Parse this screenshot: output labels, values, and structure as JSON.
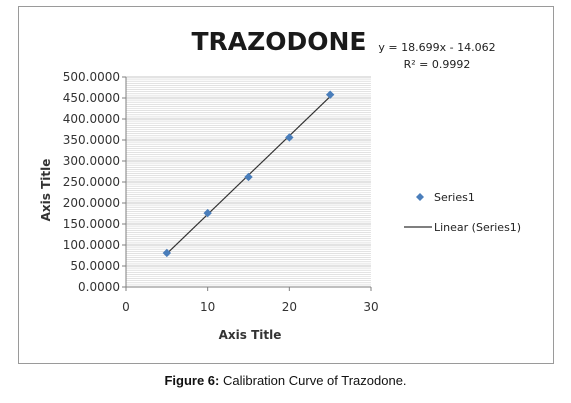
{
  "figure": {
    "caption_label": "Figure 6:",
    "caption_text": " Calibration Curve of Trazodone."
  },
  "chart_data": {
    "type": "scatter",
    "title": "TRAZODONE",
    "xlabel": "Axis Title",
    "ylabel": "Axis Title",
    "xlim": [
      0,
      30
    ],
    "ylim": [
      0,
      500
    ],
    "x_ticks": [
      0,
      10,
      20,
      30
    ],
    "x_tick_labels": [
      "0",
      "10",
      "20",
      "30"
    ],
    "y_ticks": [
      0,
      50,
      100,
      150,
      200,
      250,
      300,
      350,
      400,
      450,
      500
    ],
    "y_tick_labels": [
      "0.0000",
      "50.0000",
      "100.0000",
      "150.0000",
      "200.0000",
      "250.0000",
      "300.0000",
      "350.0000",
      "400.0000",
      "450.0000",
      "500.0000"
    ],
    "grid": true,
    "legend_position": "right",
    "series": [
      {
        "name": "Series1",
        "color": "#4a7ebb",
        "marker": "diamond",
        "x": [
          5,
          10,
          15,
          20,
          25
        ],
        "y": [
          81,
          176,
          262,
          356,
          458
        ]
      }
    ],
    "trendline": {
      "name": "Linear (Series1)",
      "color": "#333333",
      "slope": 18.699,
      "intercept": -14.062,
      "x_range": [
        5,
        25
      ],
      "equation": "y = 18.699x - 14.062",
      "r2_label": "R² = 0.9992"
    }
  }
}
